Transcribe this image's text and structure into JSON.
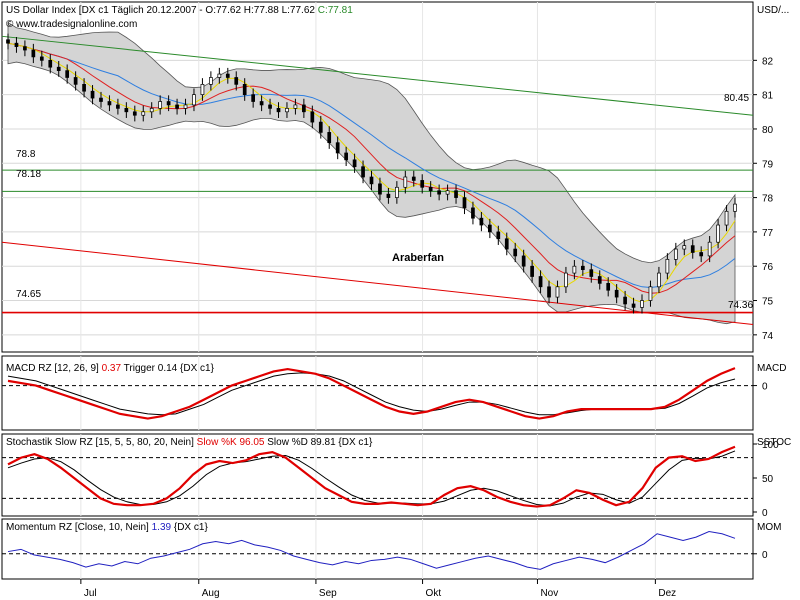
{
  "header": {
    "symbol": "US Dollar Index [DX c1",
    "period": "Täglich",
    "date": "20.12.2007",
    "ohlc": "O:77.62 H:77.88 L:77.62",
    "close": "C:77.81",
    "watermark": "© www.tradesignalonline.com"
  },
  "right_axis": {
    "price_unit": "USD/...",
    "macd": "MACD",
    "stoch": "SSTOC",
    "mom": "MOM"
  },
  "x_axis": {
    "months": [
      "Jul",
      "Aug",
      "Sep",
      "Okt",
      "Nov",
      "Dez"
    ]
  },
  "colors": {
    "candle_up": "#ffffff",
    "candle_down": "#000000",
    "band_fill": "#d4d4d4",
    "sma_short": "#e8d800",
    "sma_mid": "#e02020",
    "sma_long": "#2f7fe0",
    "trend_green": "#2a8a2a",
    "trend_red": "#e00000",
    "macd_line": "#e00000",
    "macd_trigger": "#000000",
    "momentum": "#2020c0"
  },
  "annotations": {
    "green_trend_label": "80.45",
    "support_label": "74.65",
    "lower_trend_label": "74.36",
    "level_high": "78.8",
    "level_low": "78.18",
    "text_label": "Araberfan"
  },
  "chart_data": [
    {
      "type": "candlestick",
      "title": "US Dollar Index [DX c1 Täglich 20.12.2007",
      "ylim": [
        73.5,
        83.7
      ],
      "yticks": [
        "74",
        "75",
        "76",
        "77",
        "78",
        "79",
        "80",
        "81",
        "82"
      ],
      "xticks": [
        "Jul",
        "Aug",
        "Sep",
        "Okt",
        "Nov",
        "Dez"
      ],
      "close": [
        82.5,
        82.4,
        82.3,
        82.1,
        82.0,
        81.8,
        81.7,
        81.5,
        81.3,
        81.1,
        80.9,
        80.8,
        80.7,
        80.6,
        80.5,
        80.4,
        80.5,
        80.6,
        80.8,
        80.7,
        80.6,
        80.7,
        81.0,
        81.3,
        81.5,
        81.6,
        81.5,
        81.3,
        81.0,
        80.8,
        80.7,
        80.6,
        80.5,
        80.6,
        80.7,
        80.5,
        80.2,
        79.9,
        79.6,
        79.3,
        79.1,
        78.9,
        78.6,
        78.4,
        78.1,
        78.0,
        78.3,
        78.6,
        78.5,
        78.3,
        78.2,
        78.1,
        78.2,
        78.0,
        77.7,
        77.4,
        77.2,
        77.0,
        76.8,
        76.5,
        76.3,
        76.0,
        75.7,
        75.4,
        75.1,
        75.4,
        75.8,
        76.0,
        75.9,
        75.7,
        75.5,
        75.3,
        75.1,
        74.9,
        74.8,
        75.0,
        75.4,
        75.8,
        76.2,
        76.5,
        76.6,
        76.4,
        76.3,
        76.7,
        77.2,
        77.6,
        77.81
      ],
      "price_labels": [
        "80.45",
        "74.65",
        "74.36",
        "78.8",
        "78.18"
      ],
      "annotation": "Araberfan"
    },
    {
      "type": "line",
      "title": "MACD RZ [12, 26, 9]",
      "series": [
        {
          "name": "0.37",
          "values": [
            0.1,
            0.05,
            0.0,
            -0.1,
            -0.2,
            -0.3,
            -0.4,
            -0.5,
            -0.6,
            -0.65,
            -0.7,
            -0.65,
            -0.55,
            -0.45,
            -0.3,
            -0.15,
            0.0,
            0.1,
            0.2,
            0.3,
            0.35,
            0.3,
            0.25,
            0.15,
            0.0,
            -0.15,
            -0.3,
            -0.45,
            -0.55,
            -0.6,
            -0.55,
            -0.45,
            -0.35,
            -0.3,
            -0.35,
            -0.45,
            -0.55,
            -0.65,
            -0.7,
            -0.65,
            -0.55,
            -0.5,
            -0.5,
            -0.5,
            -0.5,
            -0.5,
            -0.5,
            -0.45,
            -0.3,
            -0.1,
            0.1,
            0.25,
            0.37
          ]
        },
        {
          "name": "Trigger 0.14",
          "values": [
            0.2,
            0.15,
            0.1,
            0.0,
            -0.1,
            -0.2,
            -0.3,
            -0.4,
            -0.5,
            -0.55,
            -0.6,
            -0.62,
            -0.6,
            -0.5,
            -0.4,
            -0.25,
            -0.1,
            0.0,
            0.1,
            0.2,
            0.25,
            0.27,
            0.25,
            0.2,
            0.1,
            -0.05,
            -0.2,
            -0.35,
            -0.45,
            -0.52,
            -0.55,
            -0.5,
            -0.42,
            -0.35,
            -0.35,
            -0.4,
            -0.48,
            -0.56,
            -0.62,
            -0.62,
            -0.58,
            -0.53,
            -0.5,
            -0.5,
            -0.5,
            -0.5,
            -0.5,
            -0.48,
            -0.38,
            -0.22,
            -0.05,
            0.06,
            0.14
          ]
        }
      ],
      "label": "DX c1"
    },
    {
      "type": "line",
      "title": "Stochastik Slow RZ [15, 5, 5, 80, 20, Nein]",
      "ylim": [
        0,
        100
      ],
      "yticks": [
        "0",
        "50",
        "100"
      ],
      "series": [
        {
          "name": "Slow %K 96.05",
          "values": [
            70,
            80,
            85,
            78,
            65,
            50,
            35,
            20,
            12,
            10,
            10,
            12,
            20,
            35,
            55,
            70,
            75,
            72,
            76,
            85,
            88,
            80,
            65,
            50,
            35,
            25,
            15,
            12,
            12,
            14,
            12,
            10,
            12,
            25,
            35,
            38,
            32,
            22,
            15,
            10,
            8,
            10,
            20,
            32,
            28,
            18,
            10,
            15,
            35,
            65,
            80,
            82,
            75,
            78,
            88,
            96
          ]
        },
        {
          "name": "Slow %D 89.81",
          "values": [
            65,
            72,
            78,
            80,
            74,
            62,
            47,
            33,
            22,
            15,
            11,
            11,
            15,
            24,
            38,
            55,
            67,
            72,
            74,
            78,
            82,
            83,
            76,
            64,
            50,
            37,
            25,
            17,
            13,
            13,
            13,
            12,
            12,
            16,
            24,
            32,
            35,
            31,
            24,
            17,
            11,
            9,
            13,
            22,
            28,
            26,
            18,
            13,
            22,
            42,
            62,
            76,
            79,
            78,
            82,
            89.8
          ]
        }
      ],
      "label": "DX c1"
    },
    {
      "type": "line",
      "title": "Momentum RZ [Close, 10, Nein]",
      "series": [
        {
          "name": "1.39",
          "values": [
            0.2,
            0.4,
            -0.1,
            -0.3,
            -0.5,
            -0.8,
            -1.2,
            -0.9,
            -1.1,
            -0.7,
            -0.9,
            -0.4,
            -0.2,
            0.1,
            0.4,
            0.9,
            1.1,
            0.9,
            1.2,
            0.8,
            0.6,
            0.3,
            -0.2,
            -0.5,
            -0.8,
            -1.0,
            -0.7,
            -0.9,
            -0.6,
            -0.5,
            -0.3,
            -0.5,
            -0.9,
            -1.3,
            -1.0,
            -0.7,
            -0.4,
            -0.2,
            -0.5,
            -0.8,
            -1.2,
            -1.4,
            -0.9,
            -0.6,
            -0.3,
            -0.5,
            -0.8,
            -0.3,
            0.3,
            0.9,
            1.8,
            1.5,
            1.2,
            1.5,
            2.0,
            1.8,
            1.39
          ]
        }
      ],
      "label": "DX c1"
    }
  ]
}
